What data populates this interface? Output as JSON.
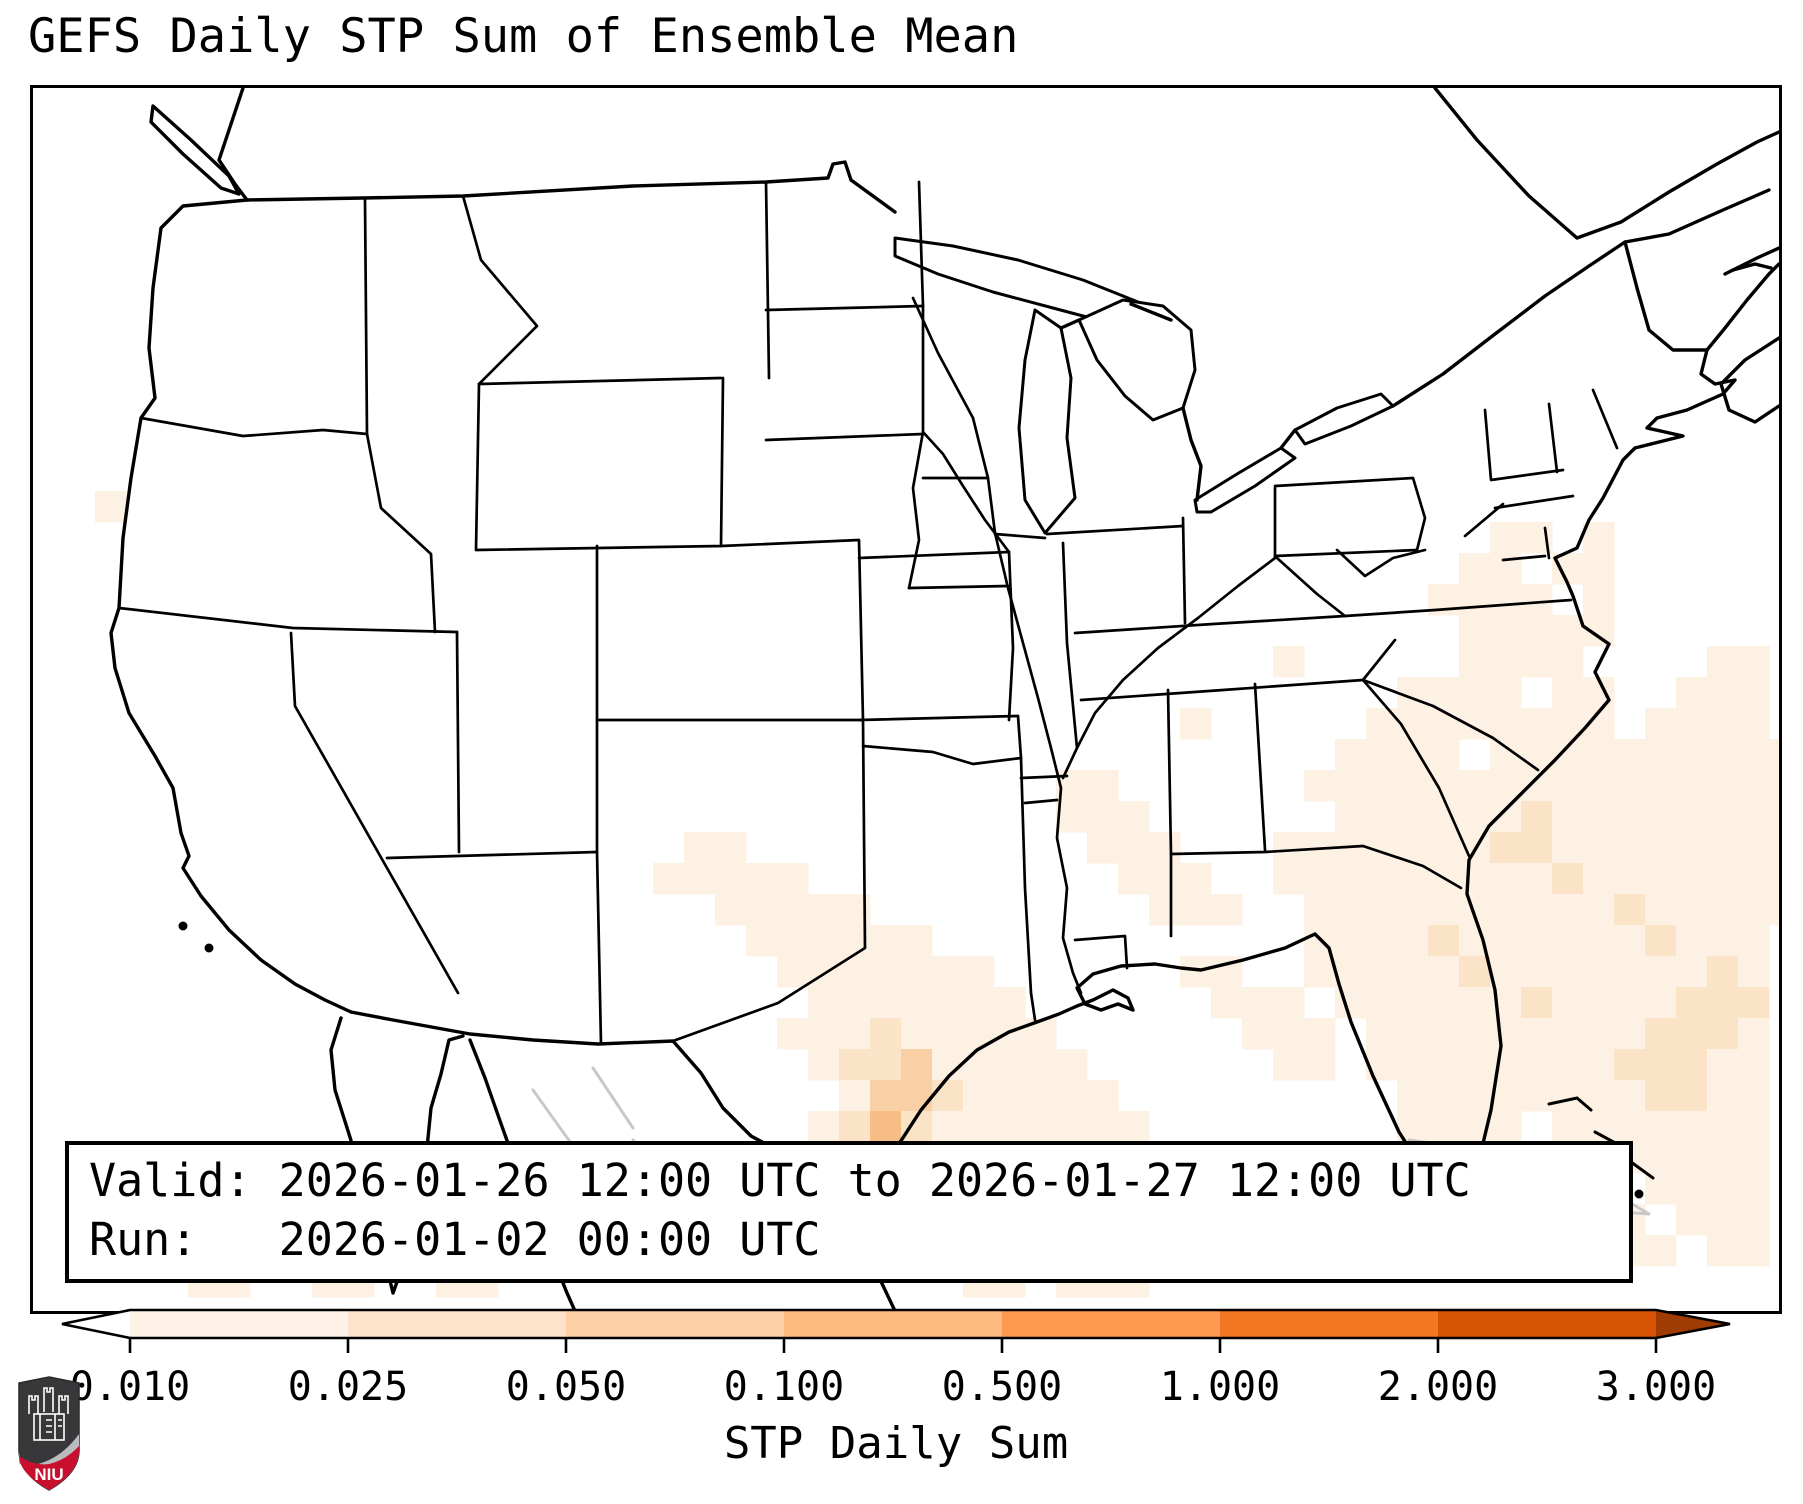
{
  "title": "GEFS Daily STP Sum of Ensemble Mean",
  "info_box": {
    "line1": "Valid: 2026-01-26 12:00 UTC to 2026-01-27 12:00 UTC",
    "line2": "Run:   2026-01-02 00:00 UTC"
  },
  "logo": {
    "text": "NIU",
    "shield_dark": "#38383a",
    "shield_red": "#c8102e",
    "accent_gray": "#b9bcbe"
  },
  "map": {
    "border_color": "#000000",
    "state_line_color": "#000000",
    "foreign_line_color": "#c9c9c9",
    "background": "#ffffff"
  },
  "chart_data": {
    "type": "heatmap",
    "title": "GEFS Daily STP Sum of Ensemble Mean",
    "valid": "2026-01-26 12:00 UTC to 2026-01-27 12:00 UTC",
    "run": "2026-01-02 00:00 UTC",
    "colorbar_label": "STP Daily Sum",
    "colorbar_tick_labels": [
      "0.010",
      "0.025",
      "0.050",
      "0.100",
      "0.500",
      "1.000",
      "2.000",
      "3.000"
    ],
    "colorbar_ticks": [
      0.01,
      0.025,
      0.05,
      0.1,
      0.5,
      1.0,
      2.0,
      3.0
    ],
    "colorbar_segment_colors": [
      "#fdf2e5",
      "#fde3cb",
      "#fdd0a6",
      "#fdba7f",
      "#fd9a4f",
      "#f47622",
      "#d75404"
    ],
    "colorbar_under_color": "#ffffff",
    "colorbar_over_color": "#a03b03",
    "legend_position": "bottom",
    "grid": false,
    "cell_size_px": 31,
    "level_colors": [
      "#fdf1e3",
      "#fbe3c8",
      "#f9d0a6",
      "#f6bd84"
    ],
    "cells_rows": [
      {
        "r": 13,
        "c": 2,
        "s": "1"
      },
      {
        "r": 18,
        "c": 40,
        "s": "1"
      },
      {
        "r": 20,
        "c": 37,
        "s": "1"
      },
      {
        "r": 22,
        "c": 33,
        "s": "11"
      },
      {
        "r": 23,
        "c": 33,
        "s": "111"
      },
      {
        "r": 24,
        "c": 21,
        "s": "11"
      },
      {
        "r": 24,
        "c": 34,
        "s": "111"
      },
      {
        "r": 25,
        "c": 20,
        "s": "11111"
      },
      {
        "r": 25,
        "c": 35,
        "s": "111"
      },
      {
        "r": 26,
        "c": 22,
        "s": "11111"
      },
      {
        "r": 26,
        "c": 36,
        "s": "111"
      },
      {
        "r": 27,
        "c": 23,
        "s": "111111"
      },
      {
        "r": 28,
        "c": 24,
        "s": "1111111"
      },
      {
        "r": 28,
        "c": 37,
        "s": "11"
      },
      {
        "r": 29,
        "c": 25,
        "s": "1111111"
      },
      {
        "r": 29,
        "c": 38,
        "s": "111"
      },
      {
        "r": 30,
        "c": 24,
        "s": "111211111"
      },
      {
        "r": 30,
        "c": 39,
        "s": "111"
      },
      {
        "r": 31,
        "c": 25,
        "s": "122311111"
      },
      {
        "r": 31,
        "c": 40,
        "s": "11"
      },
      {
        "r": 32,
        "c": 26,
        "s": "133211111"
      },
      {
        "r": 33,
        "c": 25,
        "s": "12421111111"
      },
      {
        "r": 34,
        "c": 24,
        "s": "1342111111111"
      },
      {
        "r": 35,
        "c": 24,
        "s": "2421122111111"
      },
      {
        "r": 36,
        "c": 26,
        "s": "112111111111"
      },
      {
        "r": 37,
        "c": 3,
        "s": "101100011"
      },
      {
        "r": 37,
        "c": 28,
        "s": "11011111111"
      },
      {
        "r": 38,
        "c": 5,
        "s": "1100110011"
      },
      {
        "r": 38,
        "c": 30,
        "s": "110111"
      },
      {
        "r": 14,
        "c": 47,
        "s": "1101"
      },
      {
        "r": 15,
        "c": 46,
        "s": "11011"
      },
      {
        "r": 16,
        "c": 45,
        "s": "111101"
      },
      {
        "r": 17,
        "c": 45,
        "s": "011111"
      },
      {
        "r": 18,
        "c": 46,
        "s": "11110"
      },
      {
        "r": 18,
        "c": 54,
        "s": "11"
      },
      {
        "r": 19,
        "c": 44,
        "s": "1111011"
      },
      {
        "r": 19,
        "c": 53,
        "s": "111"
      },
      {
        "r": 20,
        "c": 43,
        "s": "11111111"
      },
      {
        "r": 20,
        "c": 52,
        "s": "1111"
      },
      {
        "r": 21,
        "c": 42,
        "s": "111101111111111"
      },
      {
        "r": 22,
        "c": 41,
        "s": "1111111111111111"
      },
      {
        "r": 23,
        "c": 41,
        "s": "0111111211111111"
      },
      {
        "r": 24,
        "c": 40,
        "s": "11111112211111111"
      },
      {
        "r": 25,
        "c": 40,
        "s": "11111111121111111"
      },
      {
        "r": 26,
        "c": 40,
        "s": "01111111111211111"
      },
      {
        "r": 27,
        "c": 41,
        "s": "111121111112111"
      },
      {
        "r": 28,
        "c": 41,
        "s": "111112111111121"
      },
      {
        "r": 29,
        "c": 42,
        "s": "11111121111222"
      },
      {
        "r": 30,
        "c": 42,
        "s": "01111111112221"
      },
      {
        "r": 31,
        "c": 43,
        "s": "1111111122211"
      },
      {
        "r": 32,
        "c": 43,
        "s": "0111111112211"
      },
      {
        "r": 33,
        "c": 44,
        "s": "111101111111"
      },
      {
        "r": 34,
        "c": 44,
        "s": "011111011111"
      },
      {
        "r": 35,
        "c": 45,
        "s": "11011101111"
      },
      {
        "r": 36,
        "c": 46,
        "s": "1101110111"
      },
      {
        "r": 37,
        "c": 47,
        "s": "110111011"
      }
    ]
  }
}
